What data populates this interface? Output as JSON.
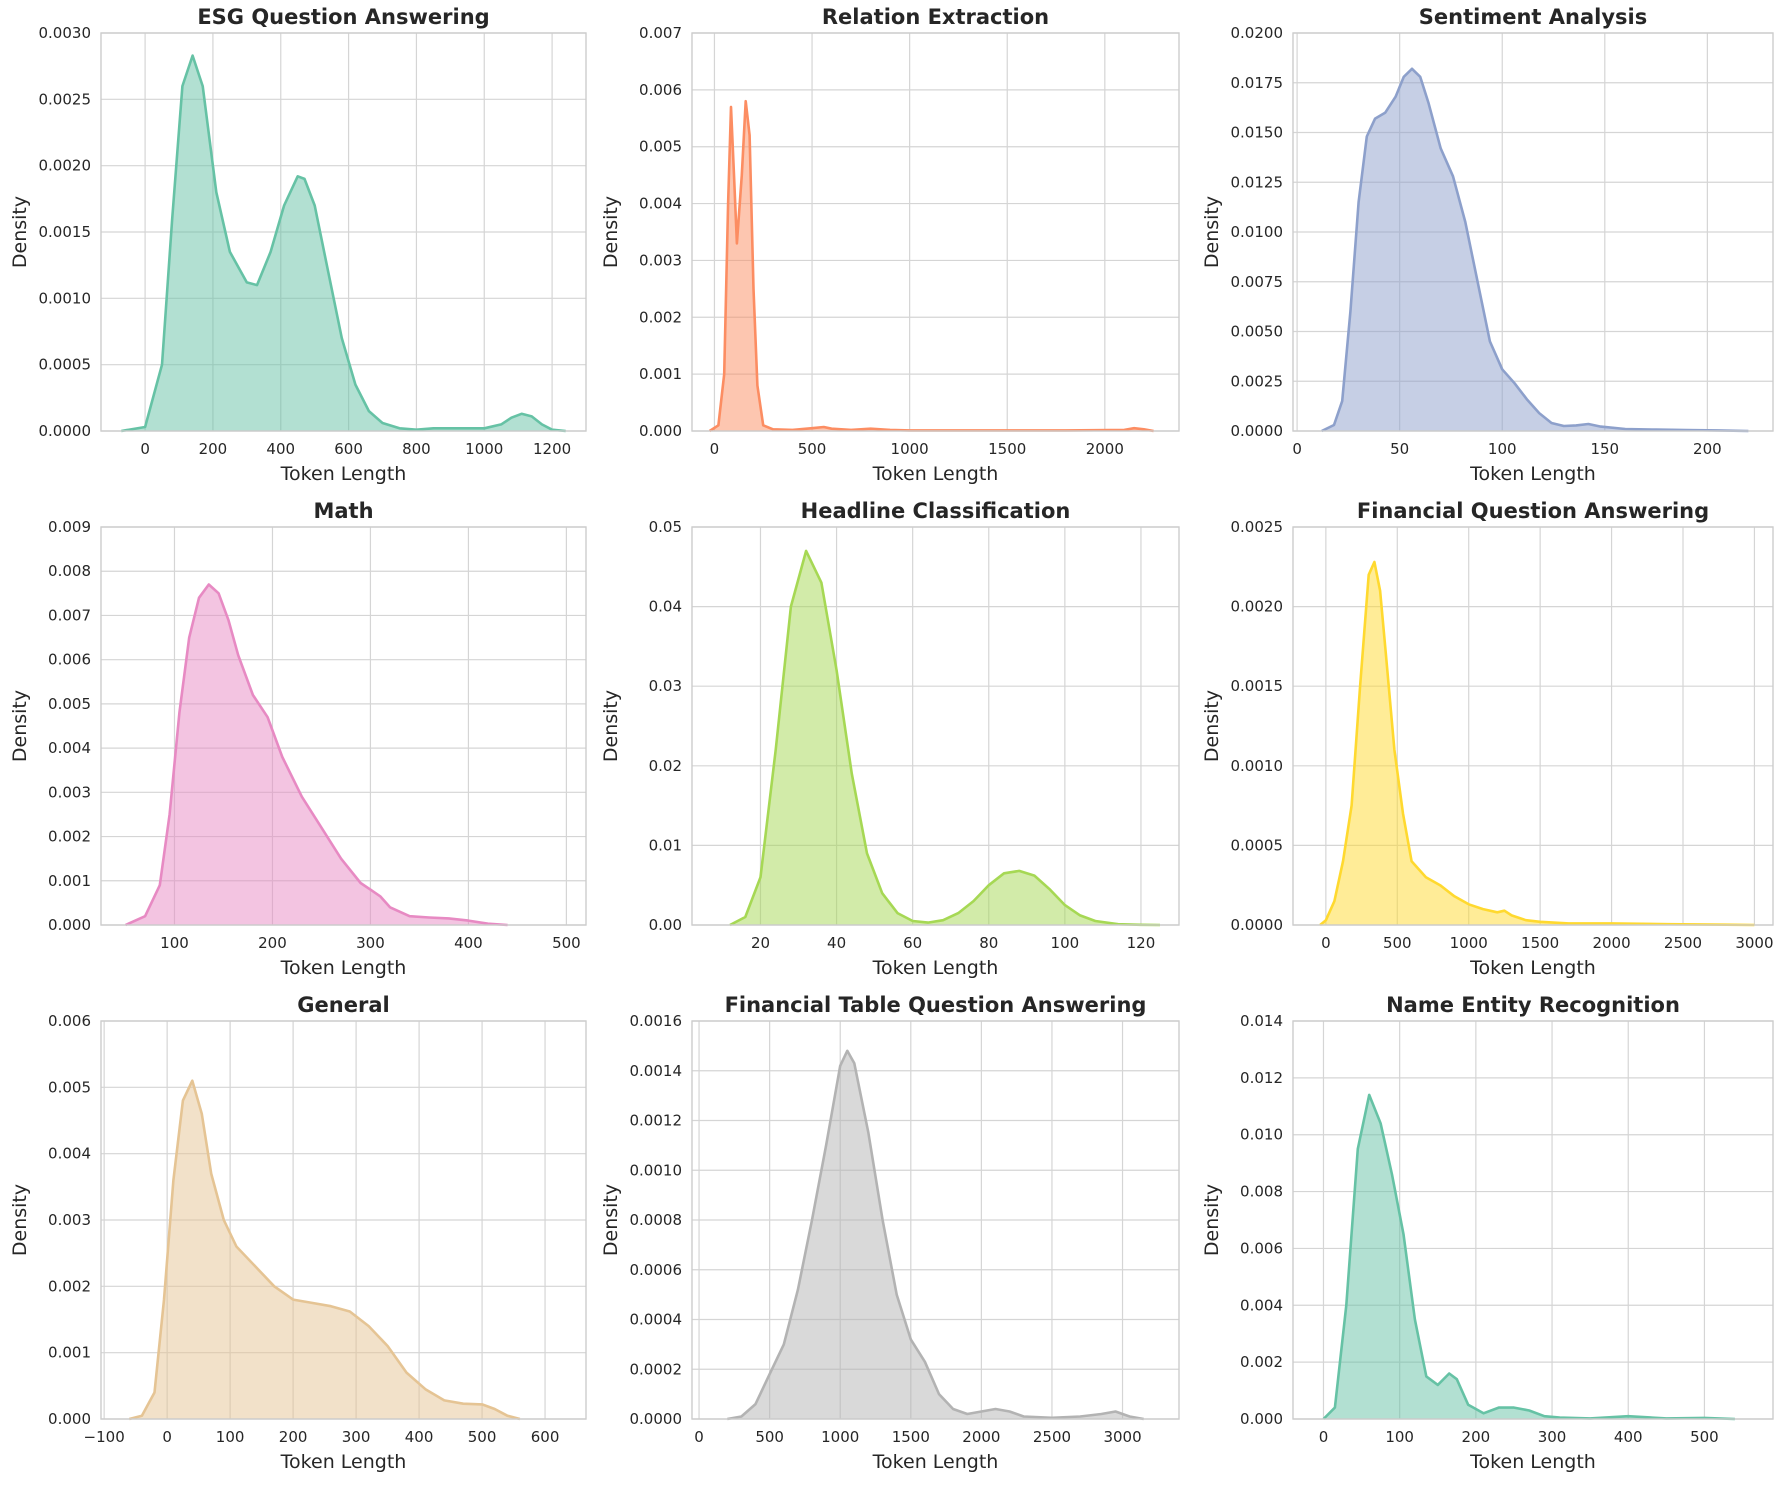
{
  "chart_data": [
    {
      "type": "area",
      "title": "ESG Question Answering",
      "xlabel": "Token Length",
      "ylabel": "Density",
      "xlim": [
        -130,
        1300
      ],
      "ylim": [
        0,
        0.003
      ],
      "xticks": [
        0,
        200,
        400,
        600,
        800,
        1000,
        1200
      ],
      "yticks": [
        0,
        0.0005,
        0.001,
        0.0015,
        0.002,
        0.0025,
        0.003
      ],
      "ytick_labels": [
        "0.0000",
        "0.0005",
        "0.0010",
        "0.0015",
        "0.0020",
        "0.0025",
        "0.0030"
      ],
      "color": "#66c2a5",
      "series": [
        {
          "x": [
            -70,
            0,
            50,
            80,
            110,
            140,
            170,
            210,
            250,
            300,
            330,
            370,
            410,
            450,
            470,
            500,
            540,
            580,
            620,
            660,
            700,
            750,
            800,
            850,
            900,
            950,
            1000,
            1050,
            1080,
            1110,
            1140,
            1170,
            1200,
            1240
          ],
          "y": [
            0,
            3e-05,
            0.0005,
            0.0016,
            0.0026,
            0.00283,
            0.0026,
            0.0018,
            0.00135,
            0.00112,
            0.0011,
            0.00135,
            0.0017,
            0.00192,
            0.0019,
            0.0017,
            0.0012,
            0.0007,
            0.00035,
            0.00015,
            6e-05,
            2e-05,
            1e-05,
            2e-05,
            2e-05,
            2e-05,
            2e-05,
            5e-05,
            0.0001,
            0.00013,
            0.00011,
            5e-05,
            1e-05,
            0
          ]
        }
      ]
    },
    {
      "type": "area",
      "title": "Relation Extraction",
      "xlabel": "Token Length",
      "ylabel": "Density",
      "xlim": [
        -115,
        2380
      ],
      "ylim": [
        0,
        0.007
      ],
      "xticks": [
        0,
        500,
        1000,
        1500,
        2000
      ],
      "yticks": [
        0,
        0.001,
        0.002,
        0.003,
        0.004,
        0.005,
        0.006,
        0.007
      ],
      "ytick_labels": [
        "0.000",
        "0.001",
        "0.002",
        "0.003",
        "0.004",
        "0.005",
        "0.006",
        "0.007"
      ],
      "color": "#fc8d62",
      "series": [
        {
          "x": [
            -25,
            20,
            50,
            70,
            85,
            100,
            115,
            140,
            160,
            180,
            200,
            220,
            250,
            300,
            400,
            500,
            560,
            600,
            700,
            800,
            900,
            1000,
            1200,
            1500,
            1800,
            2100,
            2150,
            2200,
            2250
          ],
          "y": [
            0,
            0.0001,
            0.001,
            0.004,
            0.0057,
            0.0045,
            0.0033,
            0.0045,
            0.0058,
            0.0052,
            0.0025,
            0.0008,
            0.0001,
            3e-05,
            2e-05,
            5e-05,
            7e-05,
            4e-05,
            2e-05,
            4e-05,
            2e-05,
            1e-05,
            1e-05,
            1e-05,
            1e-05,
            2e-05,
            5e-05,
            3e-05,
            0
          ]
        }
      ]
    },
    {
      "type": "area",
      "title": "Sentiment Analysis",
      "xlabel": "Token Length",
      "ylabel": "Density",
      "xlim": [
        -2,
        232
      ],
      "ylim": [
        0,
        0.02
      ],
      "xticks": [
        0,
        50,
        100,
        150,
        200
      ],
      "yticks": [
        0,
        0.0025,
        0.005,
        0.0075,
        0.01,
        0.0125,
        0.015,
        0.0175,
        0.02
      ],
      "ytick_labels": [
        "0.0000",
        "0.0025",
        "0.0050",
        "0.0075",
        "0.0100",
        "0.0125",
        "0.0150",
        "0.0175",
        "0.0200"
      ],
      "color": "#8da0cb",
      "series": [
        {
          "x": [
            12,
            18,
            22,
            26,
            30,
            34,
            38,
            43,
            48,
            52,
            56,
            60,
            64,
            70,
            76,
            82,
            88,
            94,
            100,
            106,
            112,
            118,
            124,
            130,
            136,
            142,
            148,
            160,
            175,
            190,
            205,
            220
          ],
          "y": [
            0,
            0.0003,
            0.0015,
            0.006,
            0.0115,
            0.0148,
            0.0157,
            0.016,
            0.0168,
            0.0178,
            0.0182,
            0.0178,
            0.0165,
            0.0142,
            0.0128,
            0.0105,
            0.0075,
            0.0045,
            0.0031,
            0.0024,
            0.0016,
            0.0009,
            0.0004,
            0.00025,
            0.00028,
            0.00035,
            0.00022,
            0.0001,
            7e-05,
            5e-05,
            3e-05,
            0
          ]
        }
      ]
    },
    {
      "type": "area",
      "title": "Math",
      "xlabel": "Token Length",
      "ylabel": "Density",
      "xlim": [
        25,
        520
      ],
      "ylim": [
        0,
        0.009
      ],
      "xticks": [
        100,
        200,
        300,
        400,
        500
      ],
      "yticks": [
        0,
        0.001,
        0.002,
        0.003,
        0.004,
        0.005,
        0.006,
        0.007,
        0.008,
        0.009
      ],
      "ytick_labels": [
        "0.000",
        "0.001",
        "0.002",
        "0.003",
        "0.004",
        "0.005",
        "0.006",
        "0.007",
        "0.008",
        "0.009"
      ],
      "color": "#e78ac3",
      "series": [
        {
          "x": [
            50,
            70,
            85,
            95,
            105,
            115,
            125,
            135,
            145,
            155,
            165,
            180,
            195,
            210,
            230,
            250,
            270,
            290,
            300,
            310,
            320,
            340,
            360,
            380,
            400,
            420,
            440
          ],
          "y": [
            0,
            0.0002,
            0.0009,
            0.0025,
            0.0048,
            0.0065,
            0.0074,
            0.0077,
            0.0075,
            0.0069,
            0.0061,
            0.0052,
            0.0047,
            0.0038,
            0.0029,
            0.0022,
            0.0015,
            0.00095,
            0.0008,
            0.00065,
            0.0004,
            0.0002,
            0.00017,
            0.00015,
            0.0001,
            3e-05,
            0
          ]
        }
      ]
    },
    {
      "type": "area",
      "title": "Headline Classification",
      "xlabel": "Token Length",
      "ylabel": "Density",
      "xlim": [
        2,
        130
      ],
      "ylim": [
        0,
        0.05
      ],
      "xticks": [
        20,
        40,
        60,
        80,
        100,
        120
      ],
      "yticks": [
        0,
        0.01,
        0.02,
        0.03,
        0.04,
        0.05
      ],
      "ytick_labels": [
        "0.00",
        "0.01",
        "0.02",
        "0.03",
        "0.04",
        "0.05"
      ],
      "color": "#a6d854",
      "series": [
        {
          "x": [
            12,
            16,
            20,
            24,
            28,
            32,
            36,
            40,
            44,
            48,
            52,
            56,
            60,
            64,
            68,
            72,
            76,
            80,
            84,
            88,
            92,
            96,
            100,
            104,
            108,
            114,
            120,
            125
          ],
          "y": [
            0,
            0.001,
            0.006,
            0.022,
            0.04,
            0.047,
            0.043,
            0.032,
            0.019,
            0.009,
            0.004,
            0.0015,
            0.0005,
            0.0003,
            0.0006,
            0.0015,
            0.003,
            0.005,
            0.0065,
            0.0068,
            0.0062,
            0.0045,
            0.0025,
            0.0012,
            0.0005,
            0.0001,
            2e-05,
            0
          ]
        }
      ]
    },
    {
      "type": "area",
      "title": "Financial Question Answering",
      "xlabel": "Token Length",
      "ylabel": "Density",
      "xlim": [
        -230,
        3130
      ],
      "ylim": [
        0,
        0.0025
      ],
      "xticks": [
        0,
        500,
        1000,
        1500,
        2000,
        2500,
        3000
      ],
      "yticks": [
        0,
        0.0005,
        0.001,
        0.0015,
        0.002,
        0.0025
      ],
      "ytick_labels": [
        "0.0000",
        "0.0005",
        "0.0010",
        "0.0015",
        "0.0020",
        "0.0025"
      ],
      "color": "#ffd92f",
      "series": [
        {
          "x": [
            -40,
            0,
            60,
            120,
            180,
            240,
            300,
            340,
            380,
            420,
            480,
            540,
            600,
            700,
            800,
            900,
            1000,
            1100,
            1200,
            1250,
            1300,
            1400,
            1500,
            1700,
            2000,
            2400,
            2800,
            3000
          ],
          "y": [
            0,
            3e-05,
            0.00015,
            0.0004,
            0.00075,
            0.0015,
            0.0022,
            0.00228,
            0.0021,
            0.0017,
            0.0011,
            0.0007,
            0.0004,
            0.0003,
            0.00025,
            0.00018,
            0.00013,
            0.0001,
            8e-05,
            9e-05,
            6e-05,
            3e-05,
            2e-05,
            1e-05,
            1e-05,
            5e-06,
            2e-06,
            0
          ]
        }
      ]
    },
    {
      "type": "area",
      "title": "General",
      "xlabel": "Token Length",
      "ylabel": "Density",
      "xlim": [
        -105,
        665
      ],
      "ylim": [
        0,
        0.006
      ],
      "xticks": [
        -100,
        0,
        100,
        200,
        300,
        400,
        500,
        600
      ],
      "yticks": [
        0,
        0.001,
        0.002,
        0.003,
        0.004,
        0.005,
        0.006
      ],
      "ytick_labels": [
        "0.000",
        "0.001",
        "0.002",
        "0.003",
        "0.004",
        "0.005",
        "0.006"
      ],
      "color": "#e5c494",
      "series": [
        {
          "x": [
            -60,
            -40,
            -20,
            -5,
            10,
            25,
            40,
            55,
            70,
            90,
            110,
            140,
            170,
            200,
            230,
            260,
            290,
            320,
            350,
            380,
            410,
            440,
            470,
            500,
            520,
            540,
            560
          ],
          "y": [
            0,
            5e-05,
            0.0004,
            0.0018,
            0.0036,
            0.0048,
            0.0051,
            0.0046,
            0.0037,
            0.003,
            0.0026,
            0.0023,
            0.002,
            0.0018,
            0.00175,
            0.0017,
            0.00162,
            0.0014,
            0.0011,
            0.0007,
            0.00045,
            0.00028,
            0.00023,
            0.00022,
            0.00015,
            5e-05,
            0
          ]
        }
      ]
    },
    {
      "type": "area",
      "title": "Financial Table Question Answering",
      "xlabel": "Token Length",
      "ylabel": "Density",
      "xlim": [
        -50,
        3400
      ],
      "ylim": [
        0,
        0.0016
      ],
      "xticks": [
        0,
        500,
        1000,
        1500,
        2000,
        2500,
        3000
      ],
      "yticks": [
        0,
        0.0002,
        0.0004,
        0.0006,
        0.0008,
        0.001,
        0.0012,
        0.0014,
        0.0016
      ],
      "ytick_labels": [
        "0.0000",
        "0.0002",
        "0.0004",
        "0.0006",
        "0.0008",
        "0.0010",
        "0.0012",
        "0.0014",
        "0.0016"
      ],
      "color": "#b3b3b3",
      "series": [
        {
          "x": [
            200,
            300,
            400,
            500,
            600,
            700,
            800,
            900,
            1000,
            1050,
            1100,
            1200,
            1300,
            1400,
            1500,
            1600,
            1700,
            1800,
            1900,
            2000,
            2100,
            2200,
            2300,
            2500,
            2700,
            2850,
            2950,
            3050,
            3150
          ],
          "y": [
            0,
            1e-05,
            6e-05,
            0.00018,
            0.0003,
            0.00052,
            0.0008,
            0.0011,
            0.00142,
            0.00148,
            0.00143,
            0.00115,
            0.0008,
            0.0005,
            0.00032,
            0.00023,
            0.0001,
            4e-05,
            2e-05,
            3e-05,
            4e-05,
            3e-05,
            1e-05,
            5e-06,
            1e-05,
            2e-05,
            3e-05,
            1e-05,
            0
          ]
        }
      ]
    },
    {
      "type": "area",
      "title": "Name Entity Recognition",
      "xlabel": "Token Length",
      "ylabel": "Density",
      "xlim": [
        -40,
        590
      ],
      "ylim": [
        0,
        0.014
      ],
      "xticks": [
        0,
        100,
        200,
        300,
        400,
        500
      ],
      "yticks": [
        0,
        0.002,
        0.004,
        0.006,
        0.008,
        0.01,
        0.012,
        0.014
      ],
      "ytick_labels": [
        "0.000",
        "0.002",
        "0.004",
        "0.006",
        "0.008",
        "0.010",
        "0.012",
        "0.014"
      ],
      "color": "#66c2a5",
      "series": [
        {
          "x": [
            0,
            15,
            30,
            45,
            60,
            75,
            90,
            105,
            120,
            135,
            150,
            165,
            175,
            190,
            210,
            230,
            250,
            270,
            290,
            310,
            350,
            400,
            450,
            500,
            540
          ],
          "y": [
            0,
            0.0004,
            0.004,
            0.0095,
            0.0114,
            0.0104,
            0.0086,
            0.0065,
            0.0035,
            0.0015,
            0.0012,
            0.0016,
            0.0014,
            0.0005,
            0.0002,
            0.0004,
            0.0004,
            0.0003,
            0.0001,
            5e-05,
            2e-05,
            0.0001,
            2e-05,
            4e-05,
            0
          ]
        }
      ]
    }
  ]
}
